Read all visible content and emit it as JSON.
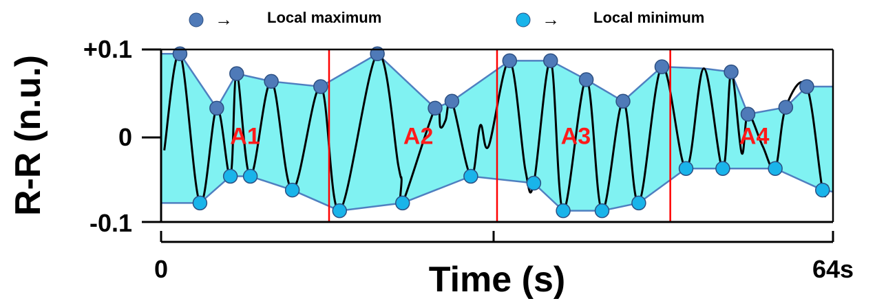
{
  "legend": {
    "max_label": "Local maximum",
    "min_label": "Local minimum",
    "arrow": "→"
  },
  "colors": {
    "envelope_fill": "#80f2f2",
    "envelope_edge": "#4f7fc0",
    "signal": "#000000",
    "max_marker": "#4f7ab8",
    "min_marker": "#19b4ea",
    "divider": "#ff0000",
    "segment_label": "#ff1a1a"
  },
  "chart_data": {
    "type": "line",
    "xlabel": "Time (s)",
    "ylabel": "R-R (n.u.)",
    "xlim": [
      0,
      64
    ],
    "ylim": [
      -0.1,
      0.1
    ],
    "x_tick_labels": [
      "0",
      "64s"
    ],
    "y_tick_labels": [
      "+0.1",
      "0",
      "-0.1"
    ],
    "segment_dividers_s": [
      16,
      32,
      48.5
    ],
    "segment_labels": [
      {
        "text": "A1",
        "x": 8,
        "y": 0
      },
      {
        "text": "A2",
        "x": 24.5,
        "y": 0
      },
      {
        "text": "A3",
        "x": 39.5,
        "y": 0
      },
      {
        "text": "A4",
        "x": 56.5,
        "y": 0
      }
    ],
    "upper_envelope": [
      [
        0,
        0.095
      ],
      [
        1.8,
        0.095
      ],
      [
        5.3,
        0.032
      ],
      [
        7.2,
        0.072
      ],
      [
        10.5,
        0.063
      ],
      [
        15.2,
        0.057
      ],
      [
        20.6,
        0.095
      ],
      [
        26.1,
        0.032
      ],
      [
        27.7,
        0.04
      ],
      [
        33.2,
        0.087
      ],
      [
        37.1,
        0.087
      ],
      [
        40.5,
        0.065
      ],
      [
        44,
        0.04
      ],
      [
        47.7,
        0.08
      ],
      [
        51.7,
        0.078
      ],
      [
        54.3,
        0.074
      ],
      [
        55.9,
        0.025
      ],
      [
        59.5,
        0.033
      ],
      [
        61.5,
        0.057
      ],
      [
        64,
        0.057
      ]
    ],
    "lower_envelope": [
      [
        0,
        -0.078
      ],
      [
        3.7,
        -0.078
      ],
      [
        6.6,
        -0.047
      ],
      [
        8.5,
        -0.047
      ],
      [
        12.5,
        -0.063
      ],
      [
        17,
        -0.087
      ],
      [
        23,
        -0.078
      ],
      [
        29.5,
        -0.047
      ],
      [
        35.5,
        -0.055
      ],
      [
        38.3,
        -0.087
      ],
      [
        42,
        -0.087
      ],
      [
        45.5,
        -0.078
      ],
      [
        50,
        -0.038
      ],
      [
        53.5,
        -0.038
      ],
      [
        58.5,
        -0.038
      ],
      [
        63,
        -0.063
      ],
      [
        64,
        -0.065
      ]
    ],
    "local_maxima": [
      [
        1.8,
        0.095
      ],
      [
        5.3,
        0.032
      ],
      [
        7.2,
        0.072
      ],
      [
        10.5,
        0.063
      ],
      [
        15.2,
        0.057
      ],
      [
        20.6,
        0.095
      ],
      [
        26.1,
        0.032
      ],
      [
        27.7,
        0.04
      ],
      [
        33.2,
        0.087
      ],
      [
        37.1,
        0.087
      ],
      [
        40.5,
        0.065
      ],
      [
        44,
        0.04
      ],
      [
        47.7,
        0.08
      ],
      [
        54.3,
        0.074
      ],
      [
        55.9,
        0.025
      ],
      [
        59.5,
        0.033
      ],
      [
        61.5,
        0.057
      ]
    ],
    "local_minima": [
      [
        3.7,
        -0.078
      ],
      [
        6.6,
        -0.047
      ],
      [
        8.5,
        -0.047
      ],
      [
        12.5,
        -0.063
      ],
      [
        17,
        -0.087
      ],
      [
        23,
        -0.078
      ],
      [
        29.5,
        -0.047
      ],
      [
        35.5,
        -0.055
      ],
      [
        38.3,
        -0.087
      ],
      [
        42,
        -0.087
      ],
      [
        45.5,
        -0.078
      ],
      [
        50,
        -0.038
      ],
      [
        53.5,
        -0.038
      ],
      [
        58.5,
        -0.038
      ],
      [
        63,
        -0.063
      ]
    ],
    "signal": [
      [
        0.3,
        -0.017
      ],
      [
        1.8,
        0.095
      ],
      [
        3.7,
        -0.078
      ],
      [
        5.3,
        0.032
      ],
      [
        6.6,
        -0.047
      ],
      [
        7.2,
        0.072
      ],
      [
        8.5,
        -0.047
      ],
      [
        10.5,
        0.063
      ],
      [
        12.5,
        -0.063
      ],
      [
        15.2,
        0.057
      ],
      [
        17,
        -0.087
      ],
      [
        20.6,
        0.095
      ],
      [
        22.6,
        -0.035
      ],
      [
        22.9,
        -0.05
      ],
      [
        23,
        -0.078
      ],
      [
        26.1,
        0.032
      ],
      [
        26.6,
        0.01
      ],
      [
        27.1,
        0.018
      ],
      [
        27.7,
        0.04
      ],
      [
        29.5,
        -0.047
      ],
      [
        30.4,
        0.012
      ],
      [
        31.2,
        -0.012
      ],
      [
        33.2,
        0.087
      ],
      [
        34.7,
        -0.04
      ],
      [
        35.5,
        -0.055
      ],
      [
        37.1,
        0.087
      ],
      [
        38.3,
        -0.087
      ],
      [
        40.5,
        0.065
      ],
      [
        42,
        -0.087
      ],
      [
        44,
        0.04
      ],
      [
        45.5,
        -0.078
      ],
      [
        47.7,
        0.08
      ],
      [
        50,
        -0.038
      ],
      [
        51.7,
        0.078
      ],
      [
        53.5,
        -0.038
      ],
      [
        54.3,
        0.074
      ],
      [
        55.3,
        -0.02
      ],
      [
        55.9,
        0.025
      ],
      [
        57.3,
        -0.012
      ],
      [
        58.5,
        -0.038
      ],
      [
        59.5,
        0.033
      ],
      [
        61.5,
        0.057
      ],
      [
        63,
        -0.063
      ],
      [
        63.5,
        -0.057
      ]
    ]
  }
}
